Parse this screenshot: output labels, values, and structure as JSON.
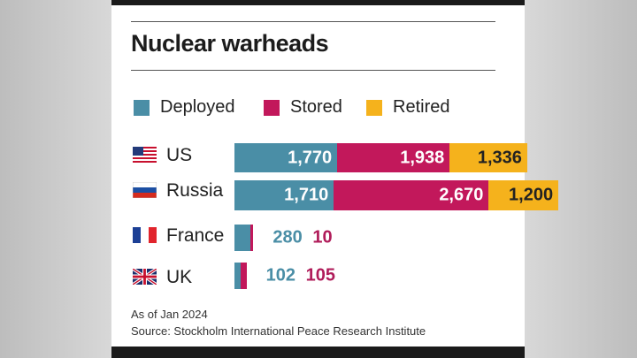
{
  "colors": {
    "deployed": "#4a8ea6",
    "stored": "#c2185b",
    "retired": "#f5b21c",
    "ext_deployed_text": "#4a8ea6",
    "ext_stored_text": "#b01c5a"
  },
  "chart_data": {
    "type": "bar",
    "orientation": "horizontal",
    "stacked": true,
    "title": "Nuclear warheads",
    "categories": [
      "US",
      "Russia",
      "France",
      "UK"
    ],
    "category_flags": [
      "us-flag-icon",
      "russia-flag-icon",
      "france-flag-icon",
      "uk-flag-icon"
    ],
    "series": [
      {
        "name": "Deployed",
        "values": [
          1770,
          1710,
          280,
          102
        ],
        "labels": [
          "1,770",
          "1,710",
          "280",
          "102"
        ]
      },
      {
        "name": "Stored",
        "values": [
          1938,
          2670,
          10,
          105
        ],
        "labels": [
          "1,938",
          "2,670",
          "10",
          "105"
        ]
      },
      {
        "name": "Retired",
        "values": [
          1336,
          1200,
          0,
          0
        ],
        "labels": [
          "1,336",
          "1,200",
          "",
          ""
        ]
      }
    ],
    "legend_position": "top",
    "grid": false,
    "notes": [
      "As of Jan 2024",
      "Source: Stockholm International Peace Research Institute"
    ]
  }
}
